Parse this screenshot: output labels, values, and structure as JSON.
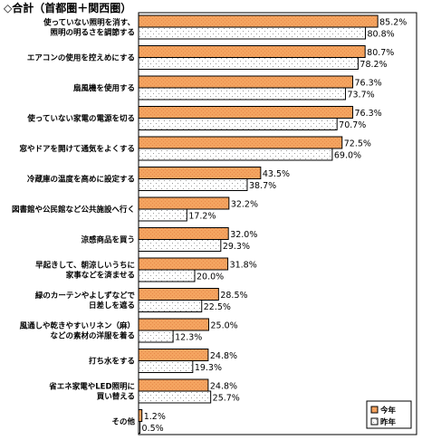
{
  "chart_data": {
    "type": "bar",
    "orientation": "horizontal",
    "title": "◇合計（首都圏＋関西圏）",
    "categories": [
      [
        "使っていない照明を消す、",
        "照明の明るさを調節する"
      ],
      [
        "エアコンの使用を控えめにする"
      ],
      [
        "扇風機を使用する"
      ],
      [
        "使っていない家電の電源を切る"
      ],
      [
        "窓やドアを開けて通気をよくする"
      ],
      [
        "冷蔵庫の温度を高めに設定する"
      ],
      [
        "図書館や公民館など公共施設へ行く"
      ],
      [
        "涼感商品を買う"
      ],
      [
        "早起きして、朝涼しいうちに",
        "家事などを済ませる"
      ],
      [
        "緑のカーテンやよしずなどで",
        "日差しを遮る"
      ],
      [
        "風通しや乾きやすいリネン（麻）",
        "などの素材の洋服を着る"
      ],
      [
        "打ち水をする"
      ],
      [
        "省エネ家電やLED照明に",
        "買い替える"
      ],
      [
        "その他"
      ]
    ],
    "series": [
      {
        "name": "今年",
        "values": [
          85.2,
          80.7,
          76.3,
          76.3,
          72.5,
          43.5,
          32.2,
          32.0,
          31.8,
          28.5,
          25.0,
          24.8,
          24.8,
          1.2
        ],
        "labels": [
          "85.2%",
          "80.7%",
          "76.3%",
          "76.3%",
          "72.5%",
          "43.5%",
          "32.2%",
          "32.0%",
          "31.8%",
          "28.5%",
          "25.0%",
          "24.8%",
          "24.8%",
          "1.2%"
        ]
      },
      {
        "name": "昨年",
        "values": [
          80.8,
          78.2,
          73.7,
          70.7,
          69.0,
          38.7,
          17.2,
          29.3,
          20.0,
          22.5,
          12.3,
          19.3,
          25.7,
          0.5
        ],
        "labels": [
          "80.8%",
          "78.2%",
          "73.7%",
          "70.7%",
          "69.0%",
          "38.7%",
          "17.2%",
          "29.3%",
          "20.0%",
          "22.5%",
          "12.3%",
          "19.3%",
          "25.7%",
          "0.5%"
        ]
      }
    ],
    "xlim": [
      0,
      100
    ],
    "grid": false,
    "legend_position": "bottom-right",
    "colors": {
      "this_year_fill": "#f4a460",
      "this_year_pattern": "#e8894a",
      "last_year_fill": "#ffffff",
      "last_year_dot": "#999999",
      "border": "#000000"
    }
  }
}
